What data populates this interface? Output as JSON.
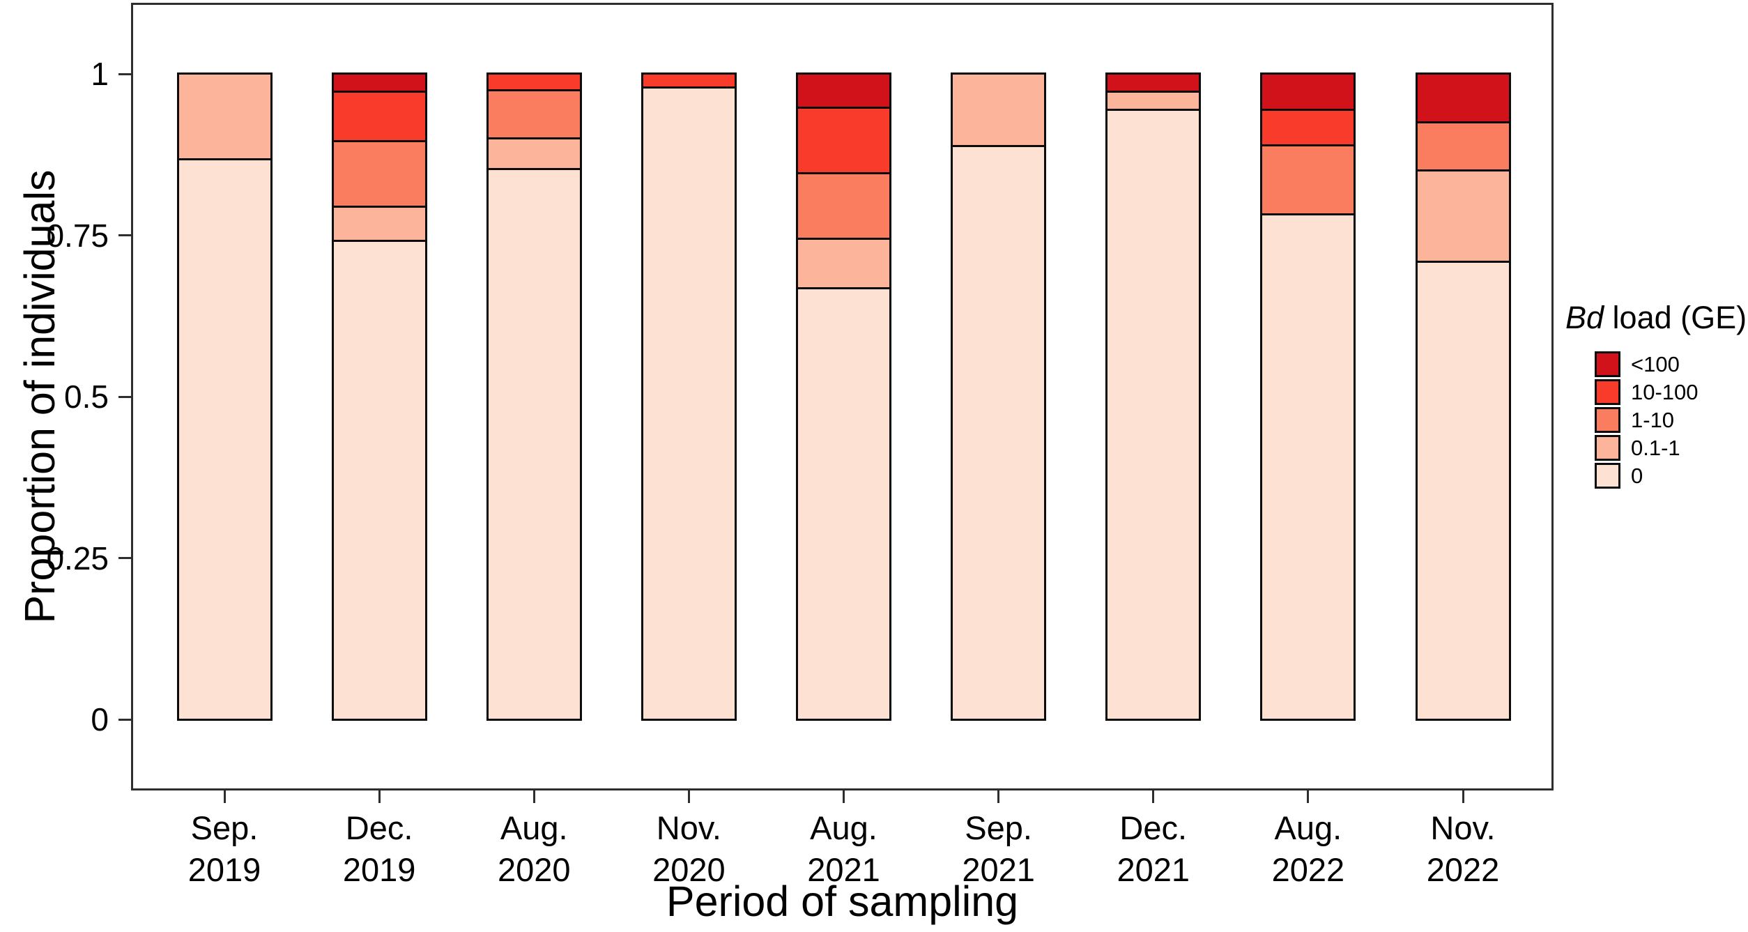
{
  "figure": {
    "background": "#FFFFFF",
    "text_color": "#000000",
    "panel_border_color": "#2E2E2E",
    "bar_border_color": "#0B0B0B",
    "legend": {
      "title_italic": "Bd",
      "title_rest": " load (GE)"
    }
  },
  "chart_data": {
    "type": "bar",
    "stacked": true,
    "title": "",
    "xlabel": "Period of sampling",
    "ylabel": "Proportion of individuals",
    "ylim": [
      0,
      1
    ],
    "yticks": [
      0,
      0.25,
      0.5,
      0.75,
      1
    ],
    "ytick_labels": [
      "0",
      "0.25",
      "0.5",
      "0.75",
      "1"
    ],
    "grid": false,
    "legend_title": "Bd load (GE)",
    "legend_position": "right",
    "legend_order_top_to_bottom": [
      "<100",
      "10-100",
      "1-10",
      "0.1-1",
      "0"
    ],
    "categories": [
      "Sep.\n2019",
      "Dec.\n2019",
      "Aug.\n2020",
      "Nov.\n2020",
      "Aug.\n2021",
      "Sep.\n2021",
      "Dec.\n2021",
      "Aug.\n2022",
      "Nov.\n2022"
    ],
    "series": [
      {
        "name": "0",
        "color": "#FDE2D3",
        "values": [
          0.87,
          0.75,
          0.86,
          0.982,
          0.675,
          0.89,
          0.95,
          0.789,
          0.715
        ]
      },
      {
        "name": "0.1-1",
        "color": "#FCB49A",
        "values": [
          0.13,
          0.05,
          0.045,
          0,
          0.075,
          0.11,
          0.025,
          0,
          0.14
        ]
      },
      {
        "name": "1-10",
        "color": "#FB7D5F",
        "values": [
          0,
          0.1,
          0.072,
          0,
          0.1,
          0,
          0,
          0.105,
          0.072
        ]
      },
      {
        "name": "10-100",
        "color": "#F93B2B",
        "values": [
          0,
          0.075,
          0.023,
          0.018,
          0.1,
          0,
          0,
          0.053,
          0
        ]
      },
      {
        "name": "<100",
        "color": "#D2121B",
        "values": [
          0,
          0.025,
          0,
          0,
          0.05,
          0,
          0.025,
          0.053,
          0.073
        ]
      }
    ]
  }
}
